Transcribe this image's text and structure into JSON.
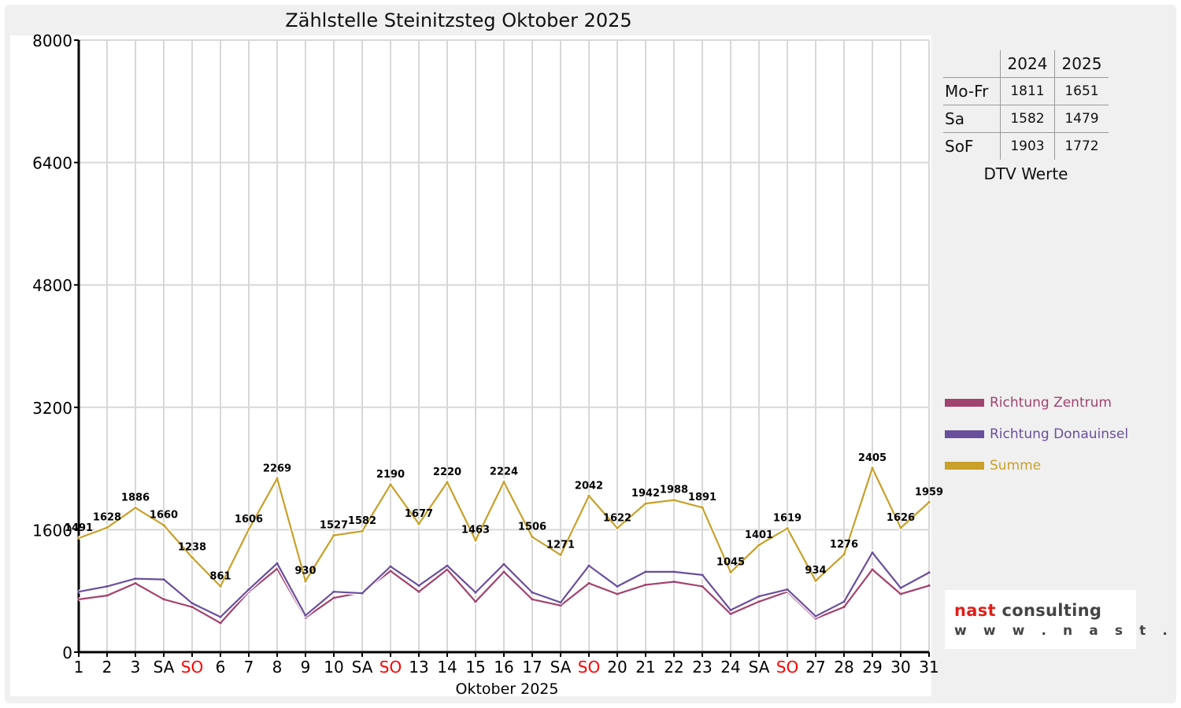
{
  "title": "Zählstelle Steinitzsteg Oktober 2025",
  "xlabel": "Oktober 2025",
  "colors": {
    "zentrum": "#a2426e",
    "donauinsel": "#6a4f9c",
    "summe": "#c8a02a",
    "weekend_label": "#ff0000",
    "grid": "#d8d8d8"
  },
  "dtv_table": {
    "col_2024": "2024",
    "col_2025": "2025",
    "rows": [
      {
        "label": "Mo-Fr",
        "v2024": "1811",
        "v2025": "1651"
      },
      {
        "label": "Sa",
        "v2024": "1582",
        "v2025": "1479"
      },
      {
        "label": "SoF",
        "v2024": "1903",
        "v2025": "1772"
      }
    ],
    "caption": "DTV Werte"
  },
  "logo": {
    "word_a": "nast",
    "word_b": "consulting",
    "url": "w w w . n a s t . a t"
  },
  "chart_data": {
    "type": "line",
    "title": "Zählstelle Steinitzsteg Oktober 2025",
    "xlabel": "Oktober 2025",
    "ylabel": "",
    "ylim": [
      0,
      8000
    ],
    "yticks": [
      0,
      1600,
      3200,
      4800,
      6400,
      8000
    ],
    "grid": true,
    "legend_position": "right",
    "categories": [
      "1",
      "2",
      "3",
      "SA",
      "SO",
      "6",
      "7",
      "8",
      "9",
      "10",
      "SA",
      "SO",
      "13",
      "14",
      "15",
      "16",
      "17",
      "SA",
      "SO",
      "20",
      "21",
      "22",
      "23",
      "24",
      "SA",
      "SO",
      "27",
      "28",
      "29",
      "30",
      "31"
    ],
    "weekend_categories": [
      "SO"
    ],
    "series": [
      {
        "name": "Richtung Zentrum",
        "color": "#a2426e",
        "values": [
          690,
          740,
          900,
          690,
          590,
          380,
          790,
          1090,
          450,
          710,
          780,
          1060,
          790,
          1080,
          660,
          1050,
          690,
          610,
          900,
          760,
          880,
          920,
          860,
          500,
          660,
          790,
          440,
          590,
          1080,
          760,
          870
        ]
      },
      {
        "name": "Richtung Donauinsel",
        "color": "#6a4f9c",
        "values": [
          790,
          860,
          960,
          950,
          640,
          460,
          820,
          1160,
          480,
          790,
          770,
          1120,
          870,
          1130,
          780,
          1150,
          780,
          650,
          1130,
          860,
          1050,
          1050,
          1010,
          550,
          730,
          820,
          470,
          660,
          1300,
          840,
          1040
        ]
      },
      {
        "name": "Summe",
        "color": "#c8a02a",
        "values": [
          1491,
          1628,
          1886,
          1660,
          1238,
          861,
          1606,
          2269,
          930,
          1527,
          1582,
          2190,
          1677,
          2220,
          1463,
          2224,
          1506,
          1271,
          2042,
          1622,
          1942,
          1988,
          1891,
          1045,
          1401,
          1619,
          934,
          1276,
          2405,
          1626,
          1959
        ],
        "labels": [
          "1491",
          "1628",
          "1886",
          "1660",
          "1238",
          "861",
          "1606",
          "2269",
          "930",
          "1527",
          "1582",
          "2190",
          "1677",
          "2220",
          "1463",
          "2224",
          "1506",
          "1271",
          "2042",
          "1622",
          "1942",
          "1988",
          "1891",
          "1045",
          "1401",
          "1619",
          "934",
          "1276",
          "2405",
          "1626",
          "1959"
        ]
      }
    ]
  }
}
